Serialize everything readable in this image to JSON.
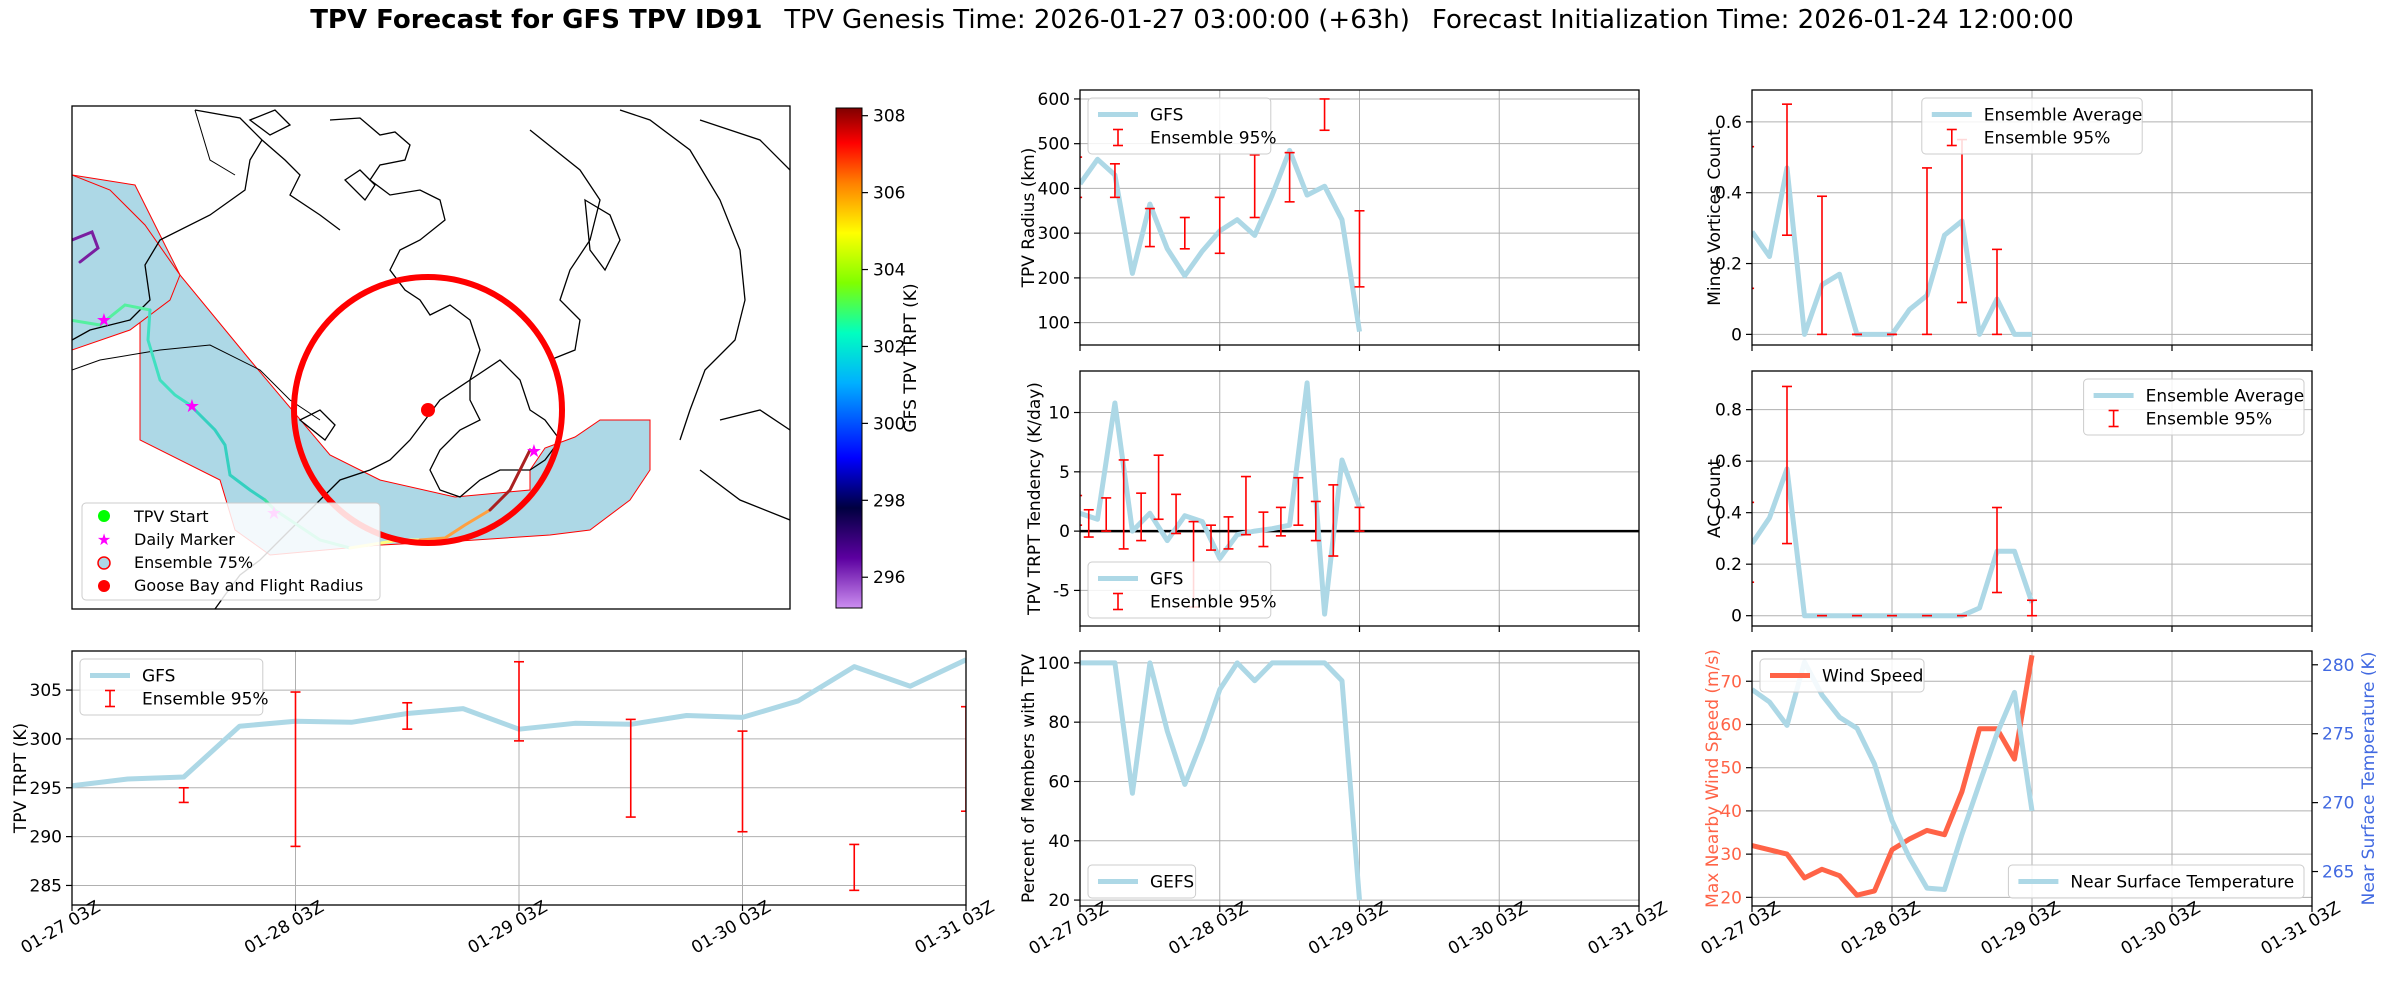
{
  "title": {
    "bold": "TPV Forecast for GFS TPV ID91",
    "genesis": "TPV Genesis Time: 2026-01-27 03:00:00 (+63h)",
    "init": "Forecast Initialization Time: 2026-01-24 12:00:00"
  },
  "colors": {
    "gfs_line": "#add8e6",
    "errorbar": "#ff0000",
    "wind": "#ff6347",
    "temp_axis": "#4169e1",
    "land_fill": "#add8e6",
    "circle": "#ff0000",
    "daily_marker": "#ff00ff",
    "tpv_start": "#00ff00"
  },
  "time_ticks": [
    "01-27 03Z",
    "01-28 03Z",
    "01-29 03Z",
    "01-30 03Z",
    "01-31 03Z"
  ],
  "map": {
    "colorbar_label": "GFS TPV TRPT (K)",
    "colorbar_range": [
      295.2,
      308.2
    ],
    "colorbar_ticks": [
      "296",
      "298",
      "300",
      "302",
      "304",
      "306",
      "308"
    ],
    "legend": [
      "TPV Start",
      "Daily Marker",
      "Ensemble 75%",
      "Goose Bay and Flight Radius"
    ]
  },
  "chart_data": [
    {
      "id": "trpt",
      "type": "line",
      "ylabel": "TPV TRPT (K)",
      "ylim": [
        283,
        309
      ],
      "yticks": [
        285,
        290,
        295,
        300,
        305
      ],
      "legend": [
        "GFS",
        "Ensemble 95%"
      ],
      "legend_loc": "upper-left",
      "x": [
        0,
        6,
        12,
        18,
        24,
        30,
        36,
        42,
        48,
        54,
        60,
        66,
        72,
        78,
        84,
        90,
        96
      ],
      "series": [
        {
          "name": "GFS",
          "values": [
            295.2,
            295.9,
            296.1,
            301.3,
            301.8,
            301.7,
            302.6,
            303.1,
            301.0,
            301.6,
            301.5,
            302.4,
            302.2,
            303.9,
            307.4,
            305.4,
            308.1
          ]
        }
      ],
      "errorbars": [
        {
          "x": -0.5,
          "lo": 293.0,
          "hi": 296.0
        },
        {
          "x": 12,
          "lo": 293.5,
          "hi": 295.0
        },
        {
          "x": 24,
          "lo": 289.0,
          "hi": 304.8
        },
        {
          "x": 36,
          "lo": 301.0,
          "hi": 303.7
        },
        {
          "x": 48,
          "lo": 299.8,
          "hi": 307.9
        },
        {
          "x": 60,
          "lo": 292.0,
          "hi": 302.0
        },
        {
          "x": 72,
          "lo": 290.5,
          "hi": 300.8
        },
        {
          "x": 84,
          "lo": 284.5,
          "hi": 289.2
        },
        {
          "x": 96,
          "lo": 292.6,
          "hi": 303.3
        }
      ]
    },
    {
      "id": "radius",
      "type": "line",
      "ylabel": "TPV Radius (km)",
      "ylim": [
        50,
        620
      ],
      "yticks": [
        100,
        200,
        300,
        400,
        500,
        600
      ],
      "legend": [
        "GFS",
        "Ensemble 95%"
      ],
      "legend_loc": "upper-left",
      "x": [
        0,
        3,
        6,
        9,
        12,
        15,
        18,
        21,
        24,
        27,
        30,
        33,
        36,
        39,
        42,
        45,
        48,
        51,
        54,
        57,
        60,
        63,
        66,
        69,
        72,
        75,
        78,
        81,
        84,
        87,
        90,
        93,
        96
      ],
      "series": [
        {
          "name": "GFS",
          "values": [
            410,
            465,
            430,
            210,
            365,
            265,
            205,
            260,
            305,
            330,
            295,
            385,
            485,
            385,
            405,
            330,
            80,
            null,
            null,
            null,
            null,
            null,
            null,
            null,
            null,
            null,
            null,
            null,
            null,
            null,
            null,
            null,
            null
          ]
        }
      ],
      "errorbars": [
        {
          "x": -0.5,
          "lo": 380,
          "hi": 470
        },
        {
          "x": 6,
          "lo": 380,
          "hi": 455
        },
        {
          "x": 12,
          "lo": 270,
          "hi": 355
        },
        {
          "x": 18,
          "lo": 265,
          "hi": 335
        },
        {
          "x": 24,
          "lo": 255,
          "hi": 380
        },
        {
          "x": 30,
          "lo": 335,
          "hi": 475
        },
        {
          "x": 36,
          "lo": 370,
          "hi": 480
        },
        {
          "x": 42,
          "lo": 530,
          "hi": 600
        },
        {
          "x": 48,
          "lo": 180,
          "hi": 350
        }
      ]
    },
    {
      "id": "tendency",
      "type": "line",
      "ylabel": "TPV TRPT Tendency (K/day)",
      "ylim": [
        -8,
        13.5
      ],
      "yticks": [
        -5,
        0,
        5,
        10
      ],
      "legend": [
        "GFS",
        "Ensemble 95%"
      ],
      "legend_loc": "lower-left",
      "x": [
        0,
        3,
        6,
        9,
        12,
        15,
        18,
        21,
        24,
        27,
        30,
        33,
        36,
        39,
        42,
        45,
        48
      ],
      "series": [
        {
          "name": "GFS",
          "values": [
            1.5,
            1.0,
            10.8,
            0.0,
            1.5,
            -0.8,
            1.3,
            0.8,
            -2.3,
            -0.3,
            0.0,
            0.2,
            0.5,
            12.5,
            -7.0,
            6.0,
            2.0
          ]
        }
      ],
      "zero_line": true,
      "errorbars": [
        {
          "x": -0.5,
          "lo": 0.5,
          "hi": 3.0
        },
        {
          "x": 1.5,
          "lo": -0.5,
          "hi": 1.8
        },
        {
          "x": 4.5,
          "lo": 0.0,
          "hi": 2.8
        },
        {
          "x": 7.5,
          "lo": -1.5,
          "hi": 6.0
        },
        {
          "x": 10.5,
          "lo": -0.8,
          "hi": 3.2
        },
        {
          "x": 13.5,
          "lo": 1.0,
          "hi": 6.4
        },
        {
          "x": 16.5,
          "lo": -0.2,
          "hi": 3.1
        },
        {
          "x": 19.5,
          "lo": -6.4,
          "hi": 0.8
        },
        {
          "x": 22.5,
          "lo": -1.6,
          "hi": 0.5
        },
        {
          "x": 25.5,
          "lo": -1.5,
          "hi": 1.2
        },
        {
          "x": 28.5,
          "lo": -0.3,
          "hi": 4.6
        },
        {
          "x": 31.5,
          "lo": -1.3,
          "hi": 1.6
        },
        {
          "x": 34.5,
          "lo": -0.4,
          "hi": 2.0
        },
        {
          "x": 37.5,
          "lo": 0.5,
          "hi": 4.5
        },
        {
          "x": 40.5,
          "lo": -0.8,
          "hi": 2.5
        },
        {
          "x": 43.5,
          "lo": -2.1,
          "hi": 3.9
        },
        {
          "x": 48,
          "lo": 0.0,
          "hi": 2.0
        }
      ]
    },
    {
      "id": "percent",
      "type": "line",
      "ylabel": "Percent of Members with TPV",
      "ylim": [
        18,
        104
      ],
      "yticks": [
        20,
        40,
        60,
        80,
        100
      ],
      "legend": [
        "GEFS"
      ],
      "legend_loc": "lower-left",
      "x": [
        0,
        3,
        6,
        9,
        12,
        15,
        18,
        21,
        24,
        27,
        30,
        33,
        36,
        39,
        42,
        45,
        48
      ],
      "series": [
        {
          "name": "GEFS",
          "values": [
            100,
            100,
            100,
            56,
            100,
            77,
            59,
            74,
            91,
            100,
            94,
            100,
            100,
            100,
            100,
            94,
            20
          ]
        }
      ]
    },
    {
      "id": "minor",
      "type": "line",
      "ylabel": "Minor Vortices Count",
      "ylim": [
        -0.03,
        0.69
      ],
      "yticks": [
        0.0,
        0.2,
        0.4,
        0.6
      ],
      "legend": [
        "Ensemble Average",
        "Ensemble 95%"
      ],
      "legend_loc": "upper-center",
      "x": [
        0,
        3,
        6,
        9,
        12,
        15,
        18,
        21,
        24,
        27,
        30,
        33,
        36,
        39,
        42,
        45,
        48
      ],
      "series": [
        {
          "name": "Ensemble Average",
          "values": [
            0.29,
            0.22,
            0.47,
            0.0,
            0.14,
            0.17,
            0.0,
            0.0,
            0.0,
            0.07,
            0.11,
            0.28,
            0.32,
            0.0,
            0.1,
            0.0,
            0.0
          ]
        }
      ],
      "errorbars": [
        {
          "x": -0.5,
          "lo": 0.13,
          "hi": 0.53
        },
        {
          "x": 6,
          "lo": 0.28,
          "hi": 0.65
        },
        {
          "x": 12,
          "lo": 0.0,
          "hi": 0.39
        },
        {
          "x": 18,
          "lo": 0.0,
          "hi": 0.0
        },
        {
          "x": 24,
          "lo": 0.0,
          "hi": 0.0
        },
        {
          "x": 30,
          "lo": 0.0,
          "hi": 0.47
        },
        {
          "x": 36,
          "lo": 0.09,
          "hi": 0.55
        },
        {
          "x": 42,
          "lo": 0.0,
          "hi": 0.24
        }
      ]
    },
    {
      "id": "ac",
      "type": "line",
      "ylabel": "AC Count",
      "ylim": [
        -0.04,
        0.95
      ],
      "yticks": [
        0.0,
        0.2,
        0.4,
        0.6,
        0.8
      ],
      "legend": [
        "Ensemble Average",
        "Ensemble 95%"
      ],
      "legend_loc": "upper-right",
      "x": [
        0,
        3,
        6,
        9,
        12,
        15,
        18,
        21,
        24,
        27,
        30,
        33,
        36,
        39,
        42,
        45,
        48
      ],
      "series": [
        {
          "name": "Ensemble Average",
          "values": [
            0.28,
            0.38,
            0.57,
            0.0,
            0.0,
            0.0,
            0.0,
            0.0,
            0.0,
            0.0,
            0.0,
            0.0,
            0.0,
            0.03,
            0.25,
            0.25,
            0.05
          ]
        }
      ],
      "errorbars": [
        {
          "x": -0.5,
          "lo": 0.13,
          "hi": 0.44
        },
        {
          "x": 6,
          "lo": 0.28,
          "hi": 0.89
        },
        {
          "x": 12,
          "lo": 0.0,
          "hi": 0.0
        },
        {
          "x": 18,
          "lo": 0.0,
          "hi": 0.0
        },
        {
          "x": 24,
          "lo": 0.0,
          "hi": 0.0
        },
        {
          "x": 30,
          "lo": 0.0,
          "hi": 0.0
        },
        {
          "x": 36,
          "lo": 0.0,
          "hi": 0.0
        },
        {
          "x": 42,
          "lo": 0.09,
          "hi": 0.42
        },
        {
          "x": 48,
          "lo": 0.0,
          "hi": 0.06
        }
      ]
    },
    {
      "id": "wind",
      "type": "line",
      "ylabel": "Max Nearby Wind Speed (m/s)",
      "ylabel_right": "Near Surface Temperature (K)",
      "ylim": [
        18,
        77
      ],
      "yticks": [
        20,
        30,
        40,
        50,
        60,
        70
      ],
      "ylim_right": [
        262.5,
        281
      ],
      "yticks_right": [
        265,
        270,
        275,
        280
      ],
      "legend": [
        "Wind Speed"
      ],
      "legend_right": [
        "Near Surface Temperature"
      ],
      "x": [
        0,
        3,
        6,
        9,
        12,
        15,
        18,
        21,
        24,
        27,
        30,
        33,
        36,
        39,
        42,
        45,
        48
      ],
      "series": [
        {
          "name": "Wind Speed",
          "axis": "left",
          "values": [
            32,
            31,
            30,
            24.5,
            26.5,
            25,
            20.5,
            21.5,
            31,
            33.5,
            35.5,
            34.5,
            44.5,
            59,
            59,
            52,
            76
          ]
        },
        {
          "name": "Near Surface Temperature",
          "axis": "right",
          "values": [
            278.2,
            277.3,
            275.6,
            280.2,
            277.8,
            276.2,
            275.4,
            272.8,
            268.7,
            266.0,
            263.8,
            263.7,
            267.7,
            271.4,
            275.0,
            278.0,
            269.4
          ]
        }
      ]
    }
  ]
}
